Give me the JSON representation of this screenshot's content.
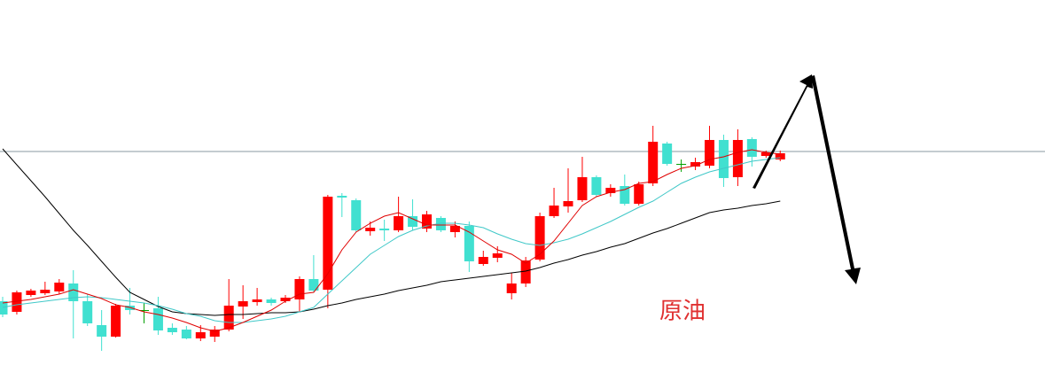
{
  "chart_data": {
    "type": "candlestick",
    "label": "原油",
    "ylim": [
      0,
      412
    ],
    "hline": 241,
    "up_color": "#ff0000",
    "down_color": "#40e0d0",
    "flat_color": "#00a000",
    "open": [
      72,
      60,
      79,
      81,
      83,
      92,
      72,
      45,
      32,
      67,
      62,
      64,
      42,
      40,
      30,
      32,
      40,
      66,
      71,
      74,
      72,
      74,
      97,
      85,
      191,
      186,
      151,
      154,
      152,
      168,
      154,
      166,
      150,
      157,
      114,
      121,
      81,
      92,
      119,
      168,
      179,
      186,
      212,
      194,
      202,
      182,
      205,
      250,
      227,
      224,
      225,
      254,
      212,
      255,
      236,
      232
    ],
    "high": [
      77,
      84,
      86,
      94,
      97,
      107,
      80,
      62,
      69,
      87,
      70,
      77,
      47,
      44,
      45,
      44,
      97,
      90,
      87,
      76,
      79,
      100,
      124,
      192,
      194,
      188,
      162,
      164,
      190,
      187,
      174,
      168,
      162,
      162,
      129,
      134,
      104,
      122,
      172,
      200,
      222,
      235,
      214,
      204,
      215,
      207,
      270,
      252,
      232,
      234,
      270,
      260,
      266,
      257,
      242,
      242
    ],
    "low": [
      54,
      57,
      77,
      79,
      80,
      30,
      44,
      16,
      31,
      57,
      47,
      34,
      34,
      29,
      27,
      26,
      38,
      52,
      67,
      67,
      70,
      60,
      82,
      64,
      167,
      150,
      146,
      140,
      150,
      152,
      150,
      150,
      144,
      105,
      112,
      116,
      74,
      88,
      117,
      166,
      172,
      184,
      190,
      190,
      180,
      180,
      202,
      225,
      218,
      220,
      222,
      201,
      202,
      224,
      234,
      230
    ],
    "close": [
      57,
      82,
      84,
      85,
      93,
      72,
      47,
      32,
      67,
      62,
      62,
      39,
      37,
      30,
      37,
      40,
      67,
      72,
      74,
      70,
      76,
      97,
      84,
      190,
      189,
      152,
      155,
      152,
      168,
      156,
      170,
      152,
      157,
      117,
      122,
      126,
      92,
      118,
      168,
      180,
      185,
      212,
      192,
      200,
      182,
      204,
      252,
      227,
      227,
      229,
      254,
      211,
      254,
      235,
      240,
      239
    ],
    "series": [
      {
        "color": "#000000",
        "values": [
          244,
          226,
          208,
          190,
          171,
          152,
          135,
          117,
          99,
          82,
          74,
          66,
          60,
          58,
          57,
          56,
          57,
          57,
          58,
          59,
          59,
          60,
          63,
          67,
          70,
          74,
          77,
          80,
          84,
          87,
          90,
          94,
          96,
          98,
          100,
          102,
          104,
          106,
          110,
          115,
          119,
          124,
          128,
          133,
          137,
          143,
          149,
          154,
          160,
          166,
          172,
          175,
          177,
          180,
          182,
          185
        ]
      },
      {
        "color": "#40c8c8",
        "values": [
          65,
          68,
          70,
          72,
          74,
          76,
          77,
          76,
          74,
          72,
          70,
          67,
          63,
          58,
          55,
          50,
          48,
          48,
          50,
          52,
          55,
          60,
          65,
          80,
          95,
          110,
          125,
          135,
          145,
          152,
          157,
          160,
          160,
          158,
          155,
          148,
          142,
          137,
          135,
          138,
          142,
          148,
          155,
          162,
          170,
          178,
          185,
          195,
          205,
          212,
          218,
          222,
          226,
          230,
          232,
          234
        ]
      },
      {
        "color": "#e00000",
        "values": [
          70,
          72,
          74,
          77,
          80,
          85,
          80,
          75,
          68,
          65,
          60,
          57,
          53,
          48,
          42,
          38,
          42,
          48,
          55,
          62,
          72,
          80,
          82,
          103,
          130,
          150,
          160,
          168,
          172,
          165,
          158,
          158,
          158,
          150,
          140,
          130,
          125,
          115,
          125,
          140,
          160,
          180,
          190,
          195,
          198,
          205,
          207,
          215,
          222,
          225,
          232,
          235,
          240,
          243,
          240,
          238
        ]
      }
    ]
  }
}
